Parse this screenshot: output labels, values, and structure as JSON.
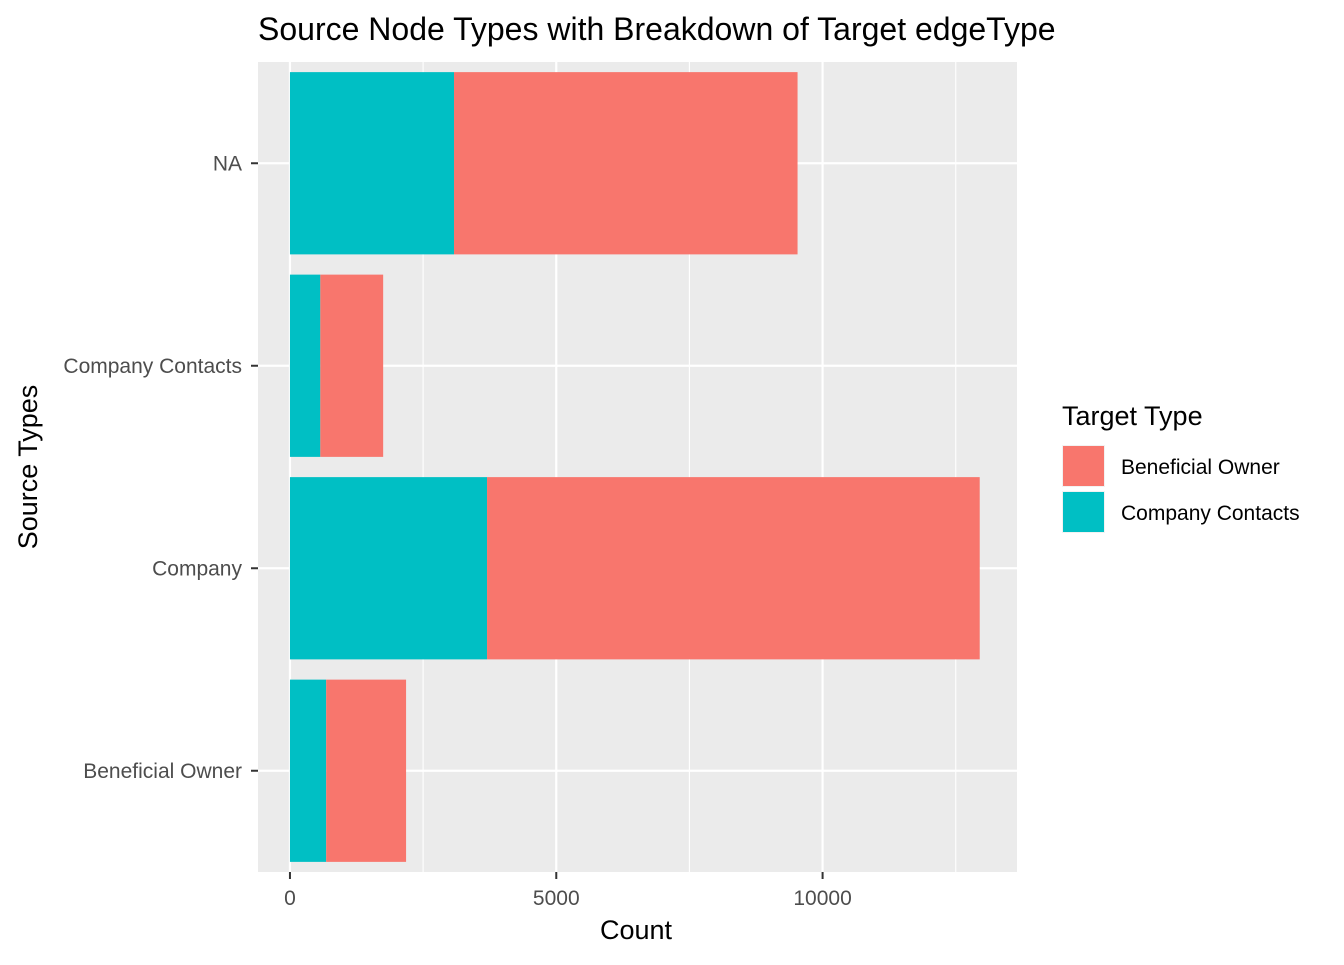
{
  "chart_data": {
    "type": "bar",
    "orientation": "horizontal",
    "stacked": true,
    "title": "Source Node Types with Breakdown of Target edgeType",
    "xlabel": "Count",
    "ylabel": "Source Types",
    "categories": [
      "Beneficial Owner",
      "Company",
      "Company Contacts",
      "NA"
    ],
    "series": [
      {
        "name": "Company Contacts",
        "color": "#00BFC4",
        "values": [
          680,
          3700,
          570,
          3080
        ]
      },
      {
        "name": "Beneficial Owner",
        "color": "#F8766D",
        "values": [
          1500,
          9250,
          1180,
          6450
        ]
      }
    ],
    "xlim": [
      -600,
      13650
    ],
    "xticks": [
      0,
      5000,
      10000
    ],
    "xtick_labels": [
      "0",
      "5000",
      "10000"
    ],
    "grid": true,
    "panel_background": "#EBEBEB",
    "legend": {
      "title": "Target Type",
      "position": "right",
      "entries": [
        "Beneficial Owner",
        "Company Contacts"
      ]
    }
  }
}
